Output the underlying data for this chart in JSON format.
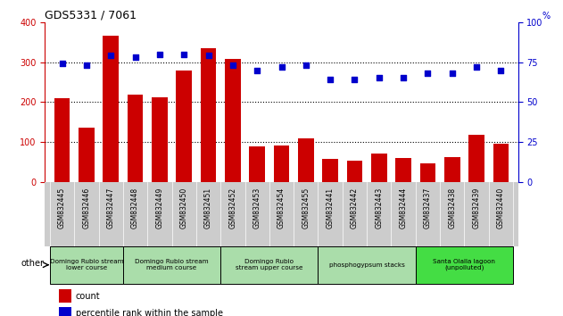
{
  "title": "GDS5331 / 7061",
  "samples": [
    "GSM832445",
    "GSM832446",
    "GSM832447",
    "GSM832448",
    "GSM832449",
    "GSM832450",
    "GSM832451",
    "GSM832452",
    "GSM832453",
    "GSM832454",
    "GSM832455",
    "GSM832441",
    "GSM832442",
    "GSM832443",
    "GSM832444",
    "GSM832437",
    "GSM832438",
    "GSM832439",
    "GSM832440"
  ],
  "counts": [
    210,
    135,
    365,
    218,
    212,
    278,
    335,
    308,
    88,
    92,
    110,
    58,
    53,
    72,
    60,
    47,
    63,
    118,
    95
  ],
  "percentiles": [
    74,
    73,
    79,
    78,
    80,
    80,
    79,
    73,
    70,
    72,
    73,
    64,
    64,
    65,
    65,
    68,
    68,
    72,
    70
  ],
  "bar_color": "#cc0000",
  "dot_color": "#0000cc",
  "ylim_left": [
    0,
    400
  ],
  "ylim_right": [
    0,
    100
  ],
  "yticks_left": [
    0,
    100,
    200,
    300,
    400
  ],
  "yticks_right": [
    0,
    25,
    50,
    75,
    100
  ],
  "groups": [
    {
      "label": "Domingo Rubio stream\nlower course",
      "start": 0,
      "end": 2,
      "color": "#ccffcc"
    },
    {
      "label": "Domingo Rubio stream\nmedium course",
      "start": 3,
      "end": 6,
      "color": "#ccffcc"
    },
    {
      "label": "Domingo Rubio\nstream upper course",
      "start": 7,
      "end": 10,
      "color": "#ccffcc"
    },
    {
      "label": "phosphogypsum stacks",
      "start": 11,
      "end": 14,
      "color": "#ccffcc"
    },
    {
      "label": "Santa Olalla lagoon\n(unpolluted)",
      "start": 15,
      "end": 18,
      "color": "#44ee66"
    }
  ],
  "xtick_bg_color": "#cccccc",
  "group_light_color": "#aaddaa",
  "group_bright_color": "#44dd44",
  "other_label": "other",
  "legend_count_label": "count",
  "legend_pct_label": "percentile rank within the sample"
}
